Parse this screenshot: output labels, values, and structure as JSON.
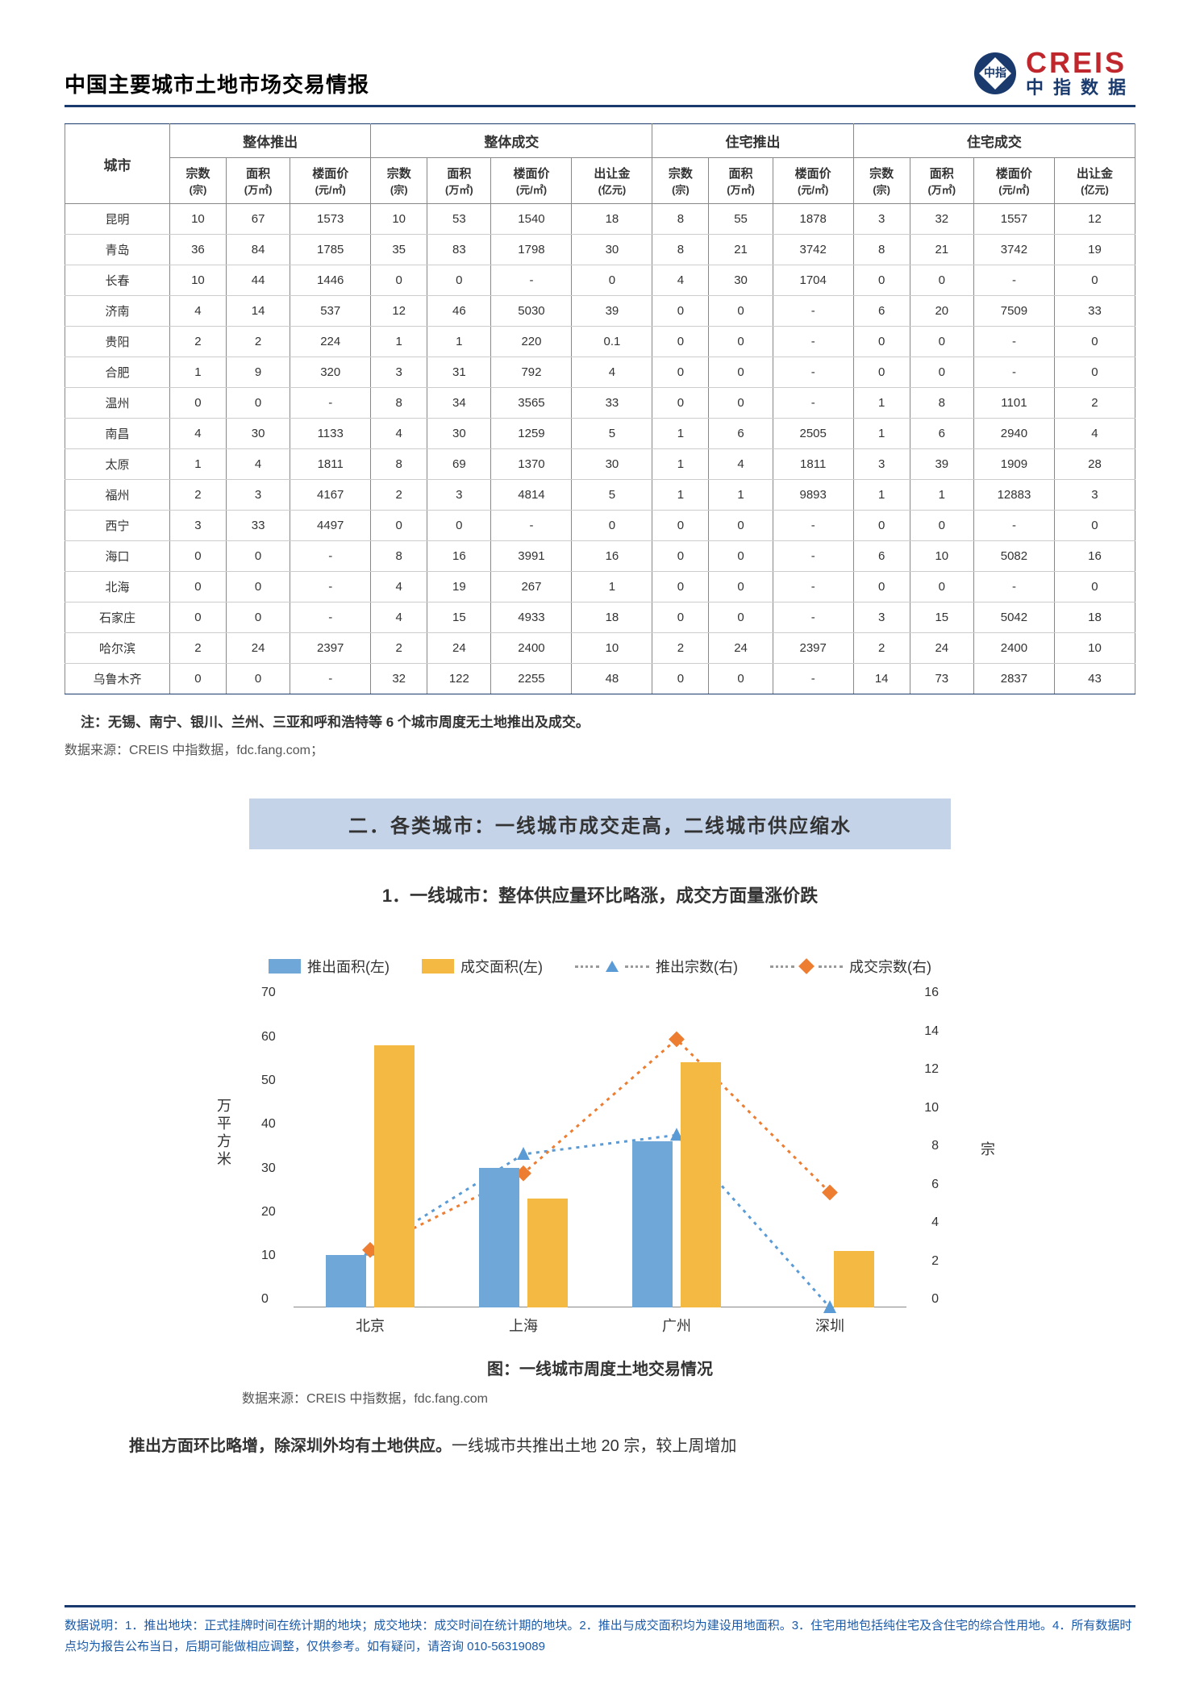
{
  "header": {
    "title": "中国主要城市土地市场交易情报",
    "logo_main": "CREIS",
    "logo_sub": "中指数据"
  },
  "table": {
    "group_headers": [
      "整体推出",
      "整体成交",
      "住宅推出",
      "住宅成交"
    ],
    "city_label": "城市",
    "sub_headers": [
      {
        "l": "宗数",
        "u": "(宗)"
      },
      {
        "l": "面积",
        "u": "(万㎡)"
      },
      {
        "l": "楼面价",
        "u": "(元/㎡)"
      },
      {
        "l": "宗数",
        "u": "(宗)"
      },
      {
        "l": "面积",
        "u": "(万㎡)"
      },
      {
        "l": "楼面价",
        "u": "(元/㎡)"
      },
      {
        "l": "出让金",
        "u": "(亿元)"
      },
      {
        "l": "宗数",
        "u": "(宗)"
      },
      {
        "l": "面积",
        "u": "(万㎡)"
      },
      {
        "l": "楼面价",
        "u": "(元/㎡)"
      },
      {
        "l": "宗数",
        "u": "(宗)"
      },
      {
        "l": "面积",
        "u": "(万㎡)"
      },
      {
        "l": "楼面价",
        "u": "(元/㎡)"
      },
      {
        "l": "出让金",
        "u": "(亿元)"
      }
    ],
    "rows": [
      [
        "昆明",
        "10",
        "67",
        "1573",
        "10",
        "53",
        "1540",
        "18",
        "8",
        "55",
        "1878",
        "3",
        "32",
        "1557",
        "12"
      ],
      [
        "青岛",
        "36",
        "84",
        "1785",
        "35",
        "83",
        "1798",
        "30",
        "8",
        "21",
        "3742",
        "8",
        "21",
        "3742",
        "19"
      ],
      [
        "长春",
        "10",
        "44",
        "1446",
        "0",
        "0",
        "-",
        "0",
        "4",
        "30",
        "1704",
        "0",
        "0",
        "-",
        "0"
      ],
      [
        "济南",
        "4",
        "14",
        "537",
        "12",
        "46",
        "5030",
        "39",
        "0",
        "0",
        "-",
        "6",
        "20",
        "7509",
        "33"
      ],
      [
        "贵阳",
        "2",
        "2",
        "224",
        "1",
        "1",
        "220",
        "0.1",
        "0",
        "0",
        "-",
        "0",
        "0",
        "-",
        "0"
      ],
      [
        "合肥",
        "1",
        "9",
        "320",
        "3",
        "31",
        "792",
        "4",
        "0",
        "0",
        "-",
        "0",
        "0",
        "-",
        "0"
      ],
      [
        "温州",
        "0",
        "0",
        "-",
        "8",
        "34",
        "3565",
        "33",
        "0",
        "0",
        "-",
        "1",
        "8",
        "1101",
        "2"
      ],
      [
        "南昌",
        "4",
        "30",
        "1133",
        "4",
        "30",
        "1259",
        "5",
        "1",
        "6",
        "2505",
        "1",
        "6",
        "2940",
        "4"
      ],
      [
        "太原",
        "1",
        "4",
        "1811",
        "8",
        "69",
        "1370",
        "30",
        "1",
        "4",
        "1811",
        "3",
        "39",
        "1909",
        "28"
      ],
      [
        "福州",
        "2",
        "3",
        "4167",
        "2",
        "3",
        "4814",
        "5",
        "1",
        "1",
        "9893",
        "1",
        "1",
        "12883",
        "3"
      ],
      [
        "西宁",
        "3",
        "33",
        "4497",
        "0",
        "0",
        "-",
        "0",
        "0",
        "0",
        "-",
        "0",
        "0",
        "-",
        "0"
      ],
      [
        "海口",
        "0",
        "0",
        "-",
        "8",
        "16",
        "3991",
        "16",
        "0",
        "0",
        "-",
        "6",
        "10",
        "5082",
        "16"
      ],
      [
        "北海",
        "0",
        "0",
        "-",
        "4",
        "19",
        "267",
        "1",
        "0",
        "0",
        "-",
        "0",
        "0",
        "-",
        "0"
      ],
      [
        "石家庄",
        "0",
        "0",
        "-",
        "4",
        "15",
        "4933",
        "18",
        "0",
        "0",
        "-",
        "3",
        "15",
        "5042",
        "18"
      ],
      [
        "哈尔滨",
        "2",
        "24",
        "2397",
        "2",
        "24",
        "2400",
        "10",
        "2",
        "24",
        "2397",
        "2",
        "24",
        "2400",
        "10"
      ],
      [
        "乌鲁木齐",
        "0",
        "0",
        "-",
        "32",
        "122",
        "2255",
        "48",
        "0",
        "0",
        "-",
        "14",
        "73",
        "2837",
        "43"
      ]
    ],
    "note": "注：无锡、南宁、银川、兰州、三亚和呼和浩特等 6 个城市周度无土地推出及成交。",
    "source": "数据来源：CREIS 中指数据，fdc.fang.com；"
  },
  "section2": {
    "header": "二．各类城市：一线城市成交走高，二线城市供应缩水",
    "sub": "1．一线城市：整体供应量环比略涨，成交方面量涨价跌"
  },
  "chart": {
    "type": "bar+line",
    "legend": [
      "推出面积(左)",
      "成交面积(左)",
      "推出宗数(右)",
      "成交宗数(右)"
    ],
    "categories": [
      "北京",
      "上海",
      "广州",
      "深圳"
    ],
    "bar1_values": [
      12,
      32,
      38,
      0
    ],
    "bar2_values": [
      60,
      25,
      56,
      13
    ],
    "line1_values": [
      3,
      8,
      9,
      0
    ],
    "line2_values": [
      3,
      7,
      14,
      6
    ],
    "bar1_color": "#6fa8d8",
    "bar2_color": "#f4b942",
    "line1_color": "#5b9bd5",
    "line2_color": "#ed7d31",
    "yleft_label": "万平方米",
    "yright_label": "宗",
    "yleft_ticks": [
      0,
      10,
      20,
      30,
      40,
      50,
      60,
      70
    ],
    "yright_ticks": [
      0,
      2,
      4,
      6,
      8,
      10,
      12,
      14,
      16
    ],
    "yleft_max": 70,
    "yright_max": 16,
    "caption": "图：一线城市周度土地交易情况",
    "source": "数据来源：CREIS 中指数据，fdc.fang.com"
  },
  "paragraph": {
    "bold": "推出方面环比略增，除深圳外均有土地供应。",
    "rest": "一线城市共推出土地 20 宗，较上周增加"
  },
  "footer": {
    "text": "数据说明：1．推出地块：正式挂牌时间在统计期的地块；成交地块：成交时间在统计期的地块。2．推出与成交面积均为建设用地面积。3．住宅用地包括纯住宅及含住宅的综合性用地。4．所有数据时点均为报告公布当日，后期可能做相应调整，仅供参考。如有疑问，请咨询 010-56319089"
  }
}
